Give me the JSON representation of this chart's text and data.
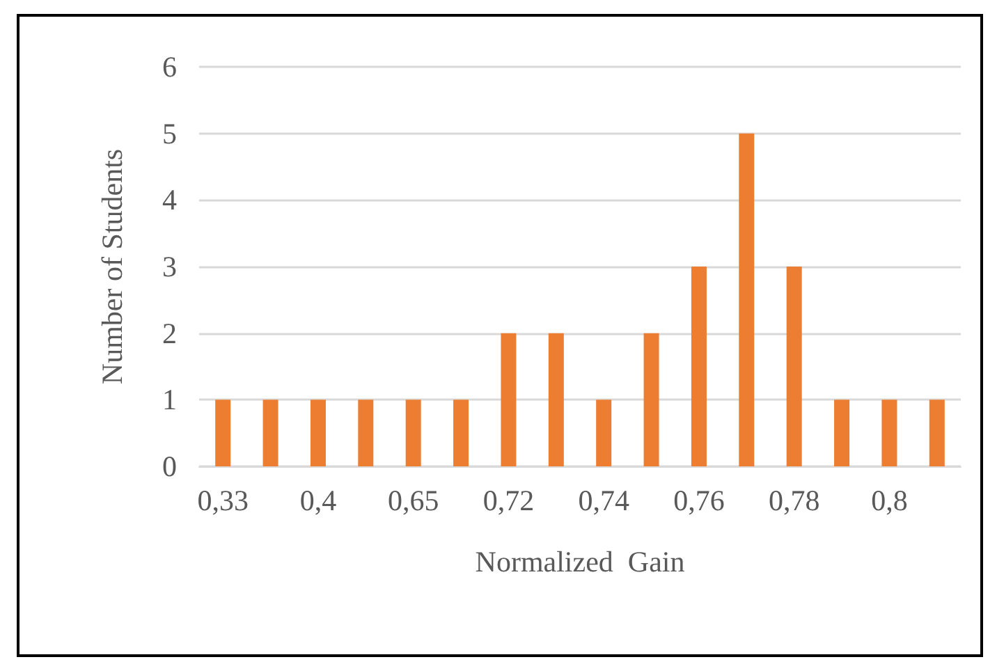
{
  "chart_data": {
    "type": "bar",
    "xlabel": "Normalized  Gain",
    "ylabel": "Number of Students",
    "categories": [
      "0,33",
      null,
      "0,4",
      null,
      "0,65",
      null,
      "0,72",
      null,
      "0,74",
      null,
      "0,76",
      null,
      "0,78",
      null,
      "0,8",
      null
    ],
    "values": [
      1,
      1,
      1,
      1,
      1,
      1,
      2,
      2,
      1,
      2,
      3,
      5,
      3,
      1,
      1,
      1
    ],
    "color": "#ed7d31",
    "ylim": [
      0,
      6
    ],
    "yticks": [
      0,
      1,
      2,
      3,
      4,
      5,
      6
    ],
    "grid": "y"
  }
}
